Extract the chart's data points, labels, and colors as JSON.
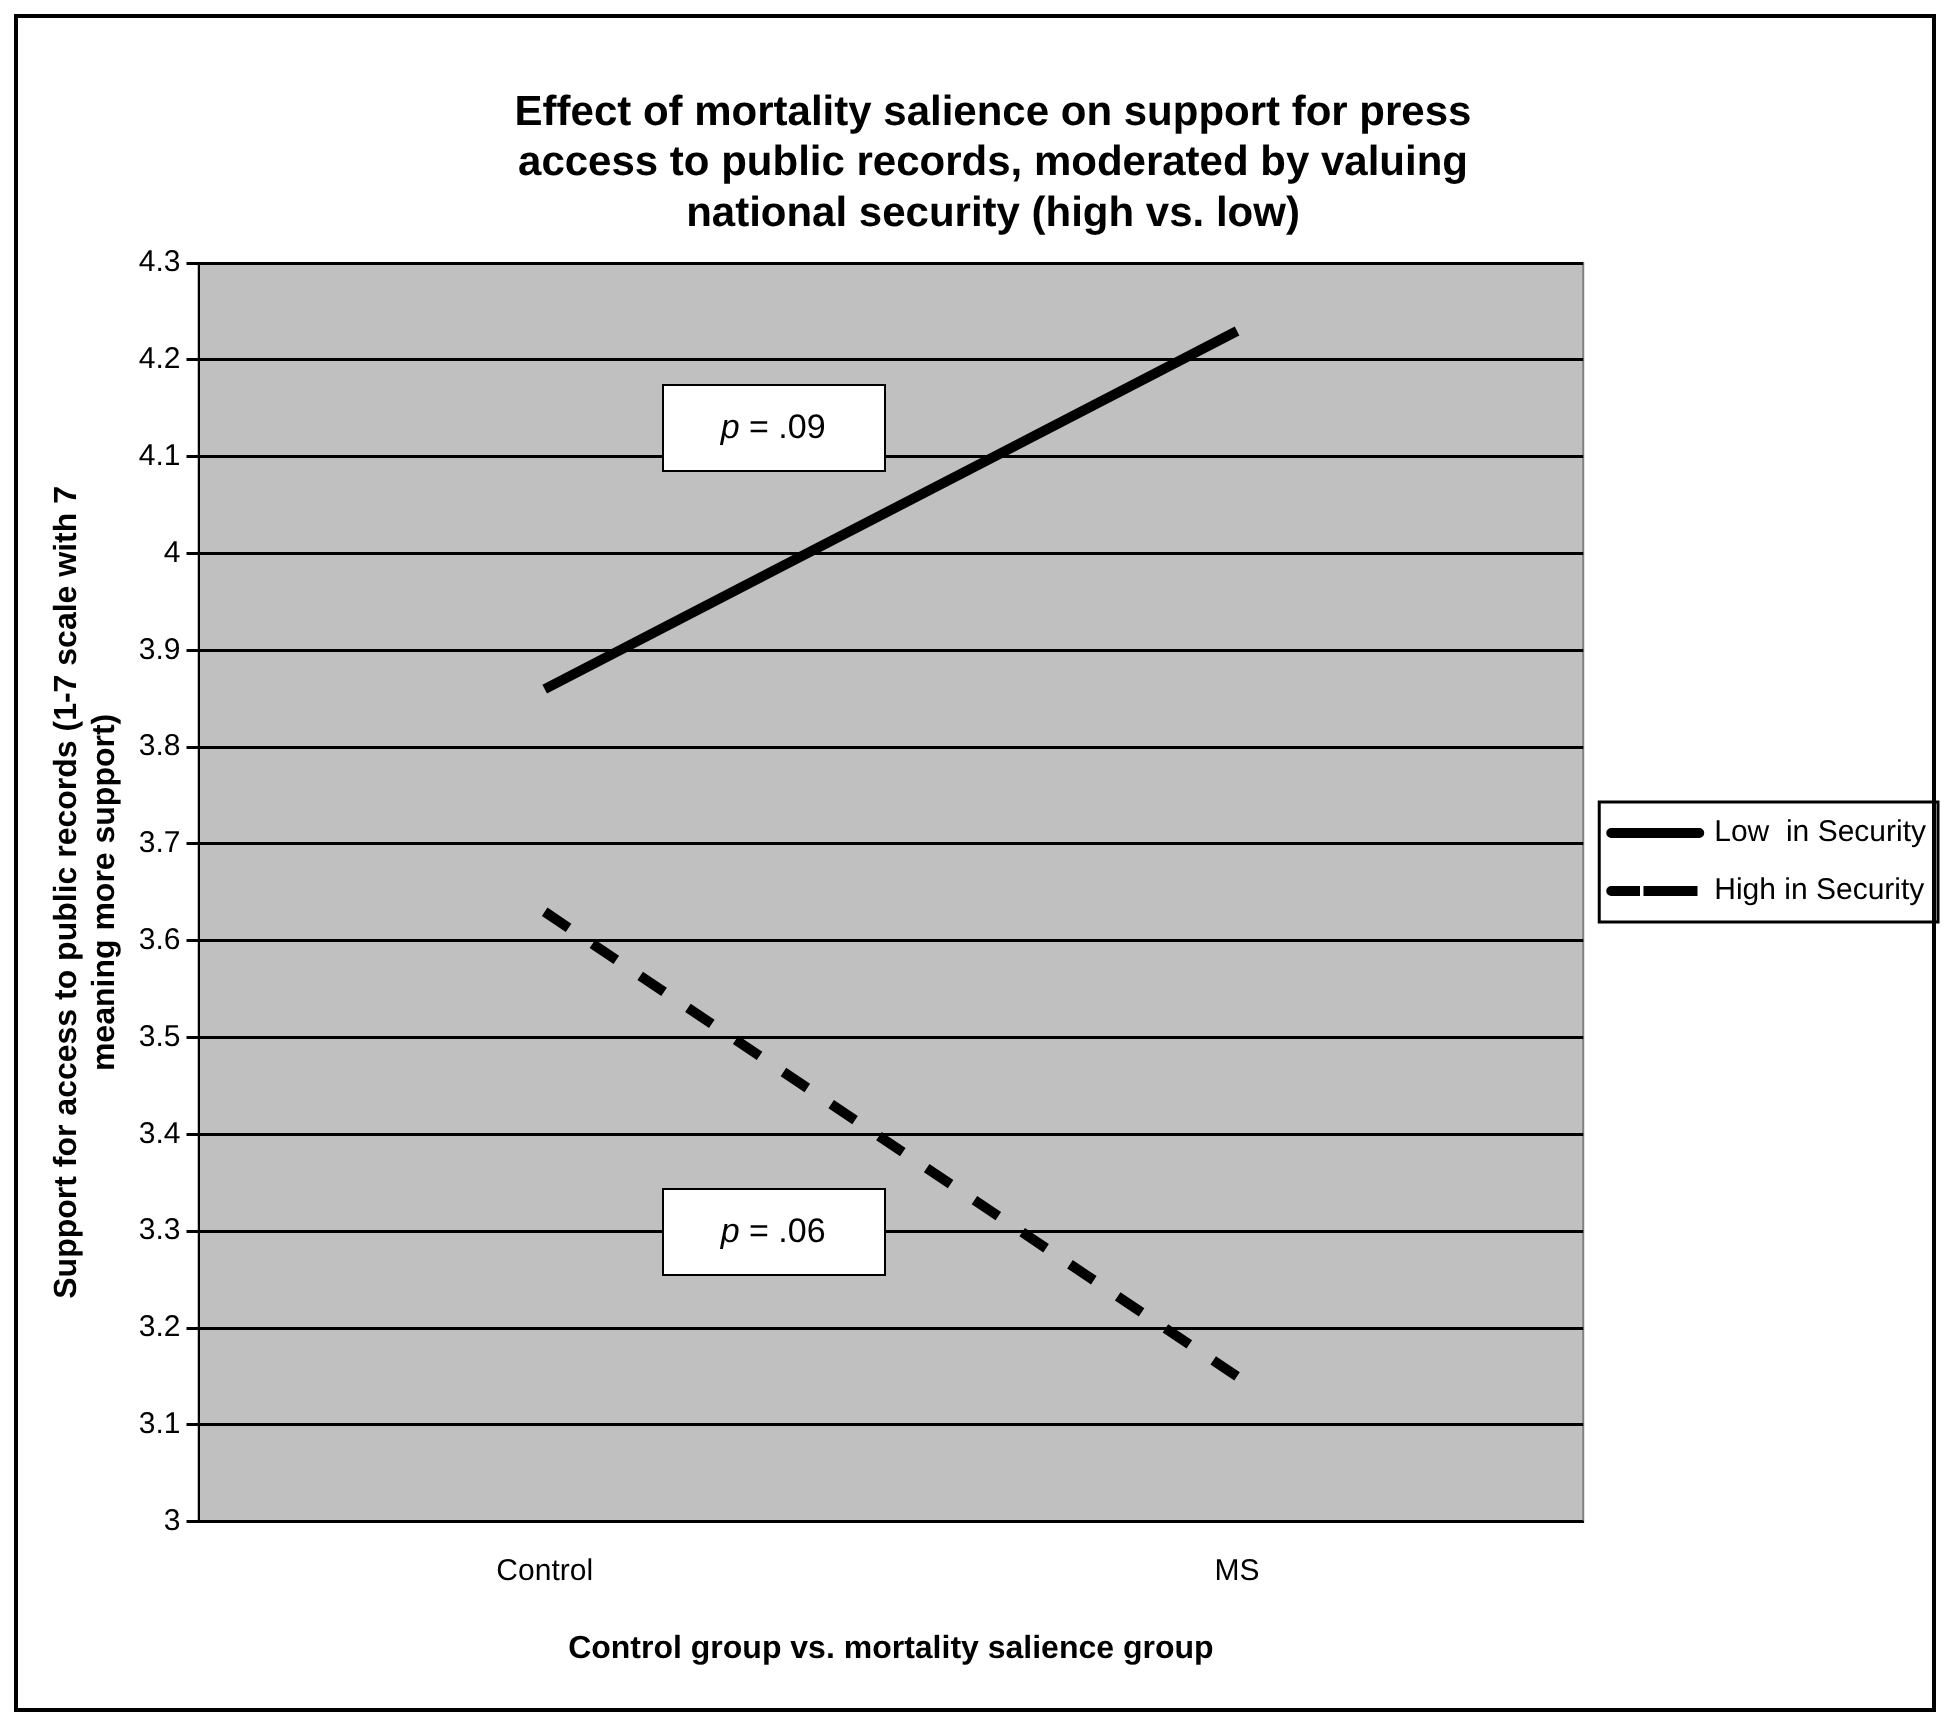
{
  "chart_data": {
    "type": "line",
    "title": "Effect of mortality salience on support for press access to public records, moderated by valuing national security (high vs. low)",
    "xlabel": "Control group vs. mortality salience group",
    "ylabel": "Support for access to public records (1-7 scale with 7 meaning more support)",
    "categories": [
      "Control",
      "MS"
    ],
    "series": [
      {
        "name": "Low  in Security",
        "color": "#000000",
        "line_style": "solid",
        "values": [
          3.86,
          4.23
        ]
      },
      {
        "name": "High in Security",
        "color": "#000000",
        "line_style": "dashed",
        "values": [
          3.63,
          3.15
        ]
      }
    ],
    "ylim": [
      3,
      4.3
    ],
    "yticks": [
      3,
      3.1,
      3.2,
      3.3,
      3.4,
      3.5,
      3.6,
      3.7,
      3.8,
      3.9,
      4,
      4.1,
      4.2,
      4.3
    ],
    "grid": "y",
    "legend": "right",
    "marker": "none",
    "annotations": [
      "p = .09",
      "p = .06"
    ]
  }
}
